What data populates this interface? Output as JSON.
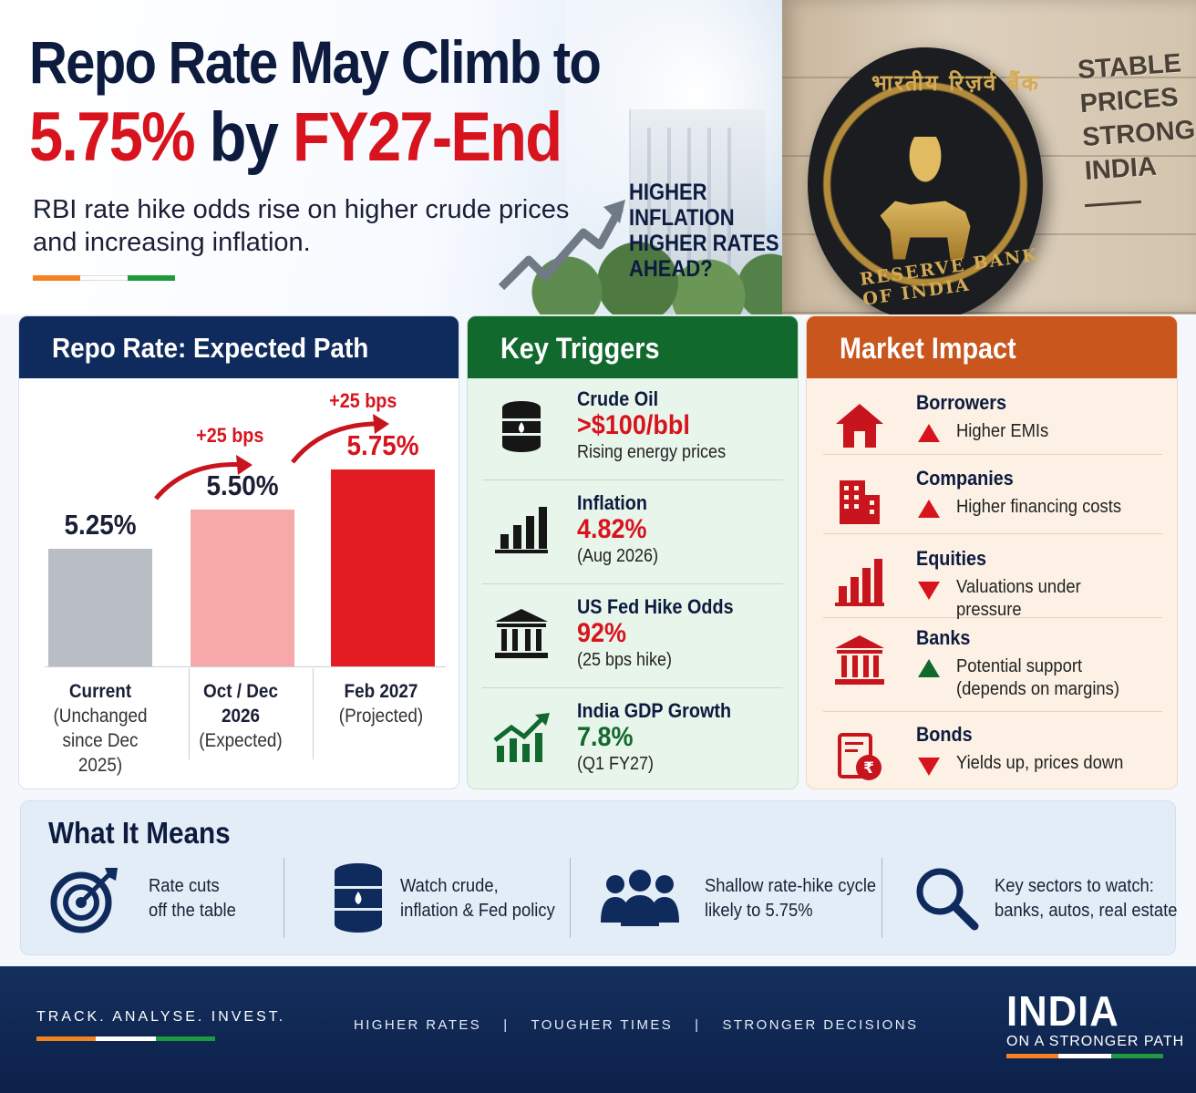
{
  "hero": {
    "title_line1": "Repo Rate May Climb to",
    "title_rate": "5.75%",
    "title_by": " by ",
    "title_end": "FY27-End",
    "subtitle": "RBI rate hike odds rise on higher crude prices and increasing inflation.",
    "callout": [
      "HIGHER",
      "INFLATION",
      "HIGHER RATES",
      "AHEAD?"
    ],
    "seal_top": "भारतीय रिज़र्व बैंक",
    "seal_ring": "RESERVE BANK OF INDIA",
    "engraving": [
      "STABLE",
      "PRICES",
      "STRONGER",
      "INDIA"
    ]
  },
  "repo_panel": {
    "title": "Repo Rate: Expected Path",
    "bars": [
      {
        "value_label": "5.25%",
        "label": "Current",
        "sub": [
          "(Unchanged",
          "since Dec 2025)"
        ]
      },
      {
        "value_label": "5.50%",
        "label": [
          "Oct / Dec",
          "2026"
        ],
        "sub": [
          "(Expected)"
        ]
      },
      {
        "value_label": "5.75%",
        "label": "Feb 2027",
        "sub": [
          "(Projected)"
        ]
      }
    ],
    "hikes": [
      "+25 bps",
      "+25 bps"
    ]
  },
  "chart_data": {
    "type": "bar",
    "categories": [
      "Current",
      "Oct / Dec 2026",
      "Feb 2027"
    ],
    "values": [
      5.25,
      5.5,
      5.75
    ],
    "title": "Repo Rate: Expected Path",
    "colors": [
      "#b9bdc4",
      "#f7a8a8",
      "#e31b23"
    ]
  },
  "triggers_panel": {
    "title": "Key Triggers",
    "items": [
      {
        "name": "Crude Oil",
        "value": ">$100/bbl",
        "note": "Rising energy prices",
        "icon": "oil-barrel-icon",
        "tone": "red"
      },
      {
        "name": "Inflation",
        "value": "4.82%",
        "note": "(Aug 2026)",
        "icon": "bar-chart-icon",
        "tone": "red"
      },
      {
        "name": "US Fed Hike Odds",
        "value": "92%",
        "note": "(25 bps hike)",
        "icon": "bank-building-icon",
        "tone": "red"
      },
      {
        "name": "India GDP Growth",
        "value": "7.8%",
        "note": "(Q1 FY27)",
        "icon": "growth-chart-icon",
        "tone": "green"
      }
    ]
  },
  "impact_panel": {
    "title": "Market Impact",
    "items": [
      {
        "name": "Borrowers",
        "desc": "Higher EMIs",
        "dir": "up-red",
        "icon": "house-icon"
      },
      {
        "name": "Companies",
        "desc": "Higher financing costs",
        "dir": "up-red",
        "icon": "office-building-icon"
      },
      {
        "name": "Equities",
        "desc": "Valuations under pressure",
        "dir": "down-red",
        "icon": "bar-chart-icon"
      },
      {
        "name": "Banks",
        "desc": "Potential support (depends on margins)",
        "dir": "up-green",
        "icon": "bank-building-icon"
      },
      {
        "name": "Bonds",
        "desc": "Yields up, prices down",
        "dir": "down-red",
        "icon": "rupee-document-icon"
      }
    ]
  },
  "what_it_means": {
    "title": "What It Means",
    "items": [
      {
        "text": [
          "Rate cuts",
          "off the table"
        ],
        "icon": "target-icon"
      },
      {
        "text": [
          "Watch crude,",
          "inflation & Fed policy"
        ],
        "icon": "oil-barrel-icon"
      },
      {
        "text": [
          "Shallow rate-hike cycle",
          "likely to 5.75%"
        ],
        "icon": "people-group-icon"
      },
      {
        "text": [
          "Key sectors to watch:",
          "banks, autos, real estate"
        ],
        "icon": "magnifier-icon"
      }
    ]
  },
  "footer": {
    "tagline": "TRACK. ANALYSE. INVEST.",
    "mid": [
      "HIGHER RATES",
      "TOUGHER TIMES",
      "STRONGER DECISIONS"
    ],
    "separator": "|",
    "brand": "INDIA",
    "brand_sub": "ON A STRONGER PATH"
  }
}
